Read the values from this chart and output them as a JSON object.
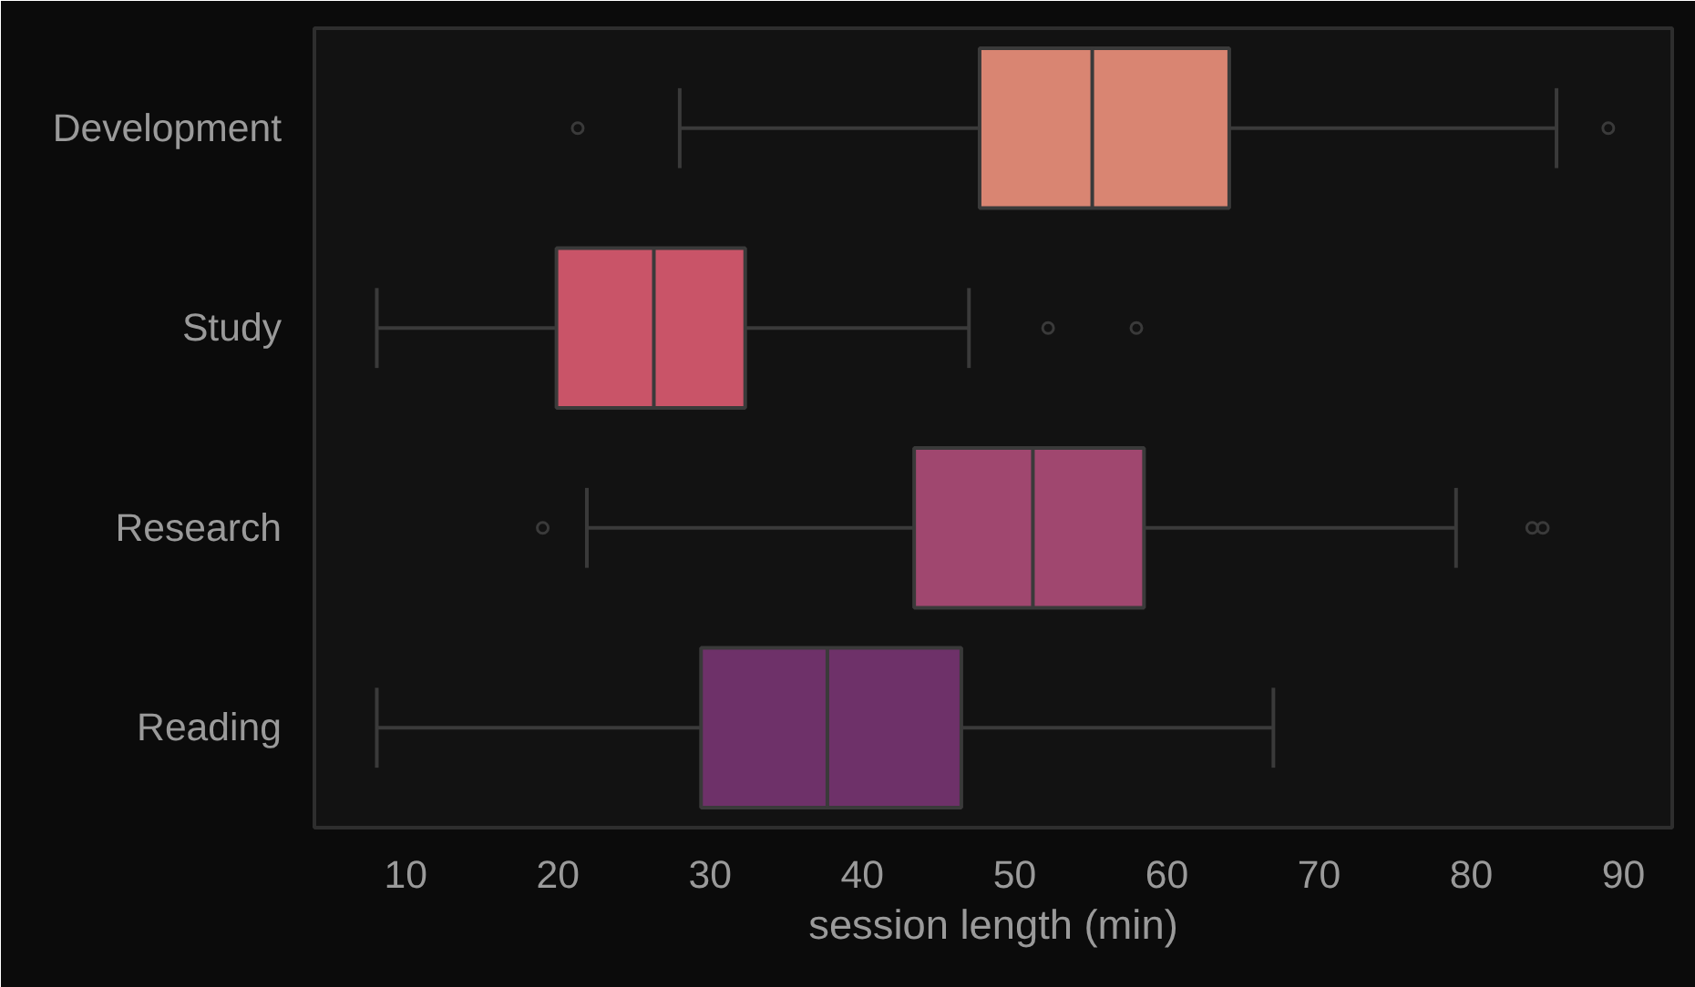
{
  "chart_data": {
    "type": "box",
    "orientation": "horizontal",
    "xlabel": "session length (min)",
    "categories": [
      "Development",
      "Study",
      "Research",
      "Reading"
    ],
    "colors": [
      "#d98572",
      "#c95468",
      "#a0476f",
      "#6e3169"
    ],
    "boxes": [
      {
        "low": 28.0,
        "q1": 47.7,
        "median": 55.1,
        "q3": 64.1,
        "high": 85.6,
        "outliers": [
          21.3,
          89.0
        ]
      },
      {
        "low": 8.1,
        "q1": 19.9,
        "median": 26.3,
        "q3": 32.3,
        "high": 47.0,
        "outliers": [
          52.2,
          58.0
        ]
      },
      {
        "low": 21.9,
        "q1": 43.4,
        "median": 51.2,
        "q3": 58.5,
        "high": 79.0,
        "outliers": [
          19.0,
          84.0,
          84.7
        ]
      },
      {
        "low": 8.1,
        "q1": 29.4,
        "median": 37.7,
        "q3": 46.5,
        "high": 67.0
      }
    ],
    "xlim": [
      4,
      93.2
    ],
    "xticks": [
      10,
      20,
      30,
      40,
      50,
      60,
      70,
      80,
      90
    ],
    "grid": false
  }
}
